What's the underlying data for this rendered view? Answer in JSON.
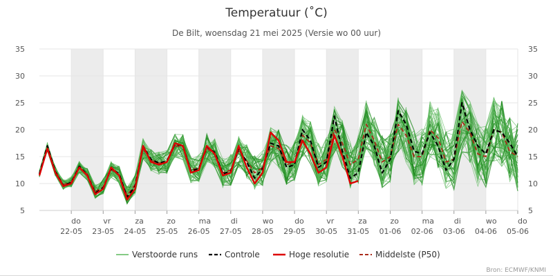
{
  "chart_data": {
    "type": "line",
    "title": "Temperatuur (˚C)",
    "subtitle": "De Bilt, woensdag 21 mei 2025 (Versie wo 00 uur)",
    "credits": "Bron: ECMWF/KNMI",
    "ylim": [
      5,
      35
    ],
    "yticks": [
      5,
      10,
      15,
      20,
      25,
      30,
      35
    ],
    "x_axis": {
      "start_day": 21,
      "end_day": 36,
      "tick_days": [
        22,
        23,
        24,
        25,
        26,
        27,
        28,
        29,
        30,
        31,
        32,
        33,
        34,
        35,
        36
      ],
      "tick_labels": [
        {
          "day": "do",
          "date": "22-05"
        },
        {
          "day": "vr",
          "date": "23-05"
        },
        {
          "day": "za",
          "date": "24-05"
        },
        {
          "day": "zo",
          "date": "25-05"
        },
        {
          "day": "ma",
          "date": "26-05"
        },
        {
          "day": "di",
          "date": "27-05"
        },
        {
          "day": "wo",
          "date": "28-05"
        },
        {
          "day": "do",
          "date": "29-05"
        },
        {
          "day": "vr",
          "date": "30-05"
        },
        {
          "day": "za",
          "date": "31-05"
        },
        {
          "day": "zo",
          "date": "01-06"
        },
        {
          "day": "ma",
          "date": "02-06"
        },
        {
          "day": "di",
          "date": "03-06"
        },
        {
          "day": "wo",
          "date": "04-06"
        },
        {
          "day": "do",
          "date": "05-06"
        }
      ],
      "shaded_days": [
        22,
        24,
        26,
        28,
        30,
        32,
        34,
        36
      ],
      "grid": true
    },
    "legend_position": "bottom-center",
    "colors": {
      "ensemble": "#5cb85c",
      "ensemble_dark": "#1e8a1e",
      "control": "#000000",
      "high_res": "#dd0000",
      "median": "#aa2a1a",
      "shade": "#ececec",
      "grid": "#e6e6e6"
    },
    "legend": [
      {
        "name": "Verstoorde runs",
        "style": "ensemble"
      },
      {
        "name": "Controle",
        "style": "control"
      },
      {
        "name": "Hoge resolutie",
        "style": "high_res"
      },
      {
        "name": "Middelste (P50)",
        "style": "median"
      }
    ],
    "series": [
      {
        "name": "Hoge resolutie",
        "x": [
          21.0,
          21.25,
          21.5,
          21.75,
          22.0,
          22.25,
          22.5,
          22.75,
          23.0,
          23.25,
          23.5,
          23.75,
          24.0,
          24.25,
          24.5,
          24.75,
          25.0,
          25.25,
          25.5,
          25.75,
          26.0,
          26.25,
          26.5,
          26.75,
          27.0,
          27.25,
          27.5,
          27.75,
          28.0,
          28.25,
          28.5,
          28.75,
          29.0,
          29.25,
          29.5,
          29.75,
          30.0,
          30.25,
          30.5,
          30.75,
          31.0
        ],
        "y": [
          11.5,
          16.5,
          12.0,
          9.5,
          10.0,
          13.0,
          11.5,
          8.0,
          9.0,
          13.0,
          11.5,
          7.0,
          9.0,
          17.0,
          14.0,
          13.5,
          14.0,
          17.5,
          17.0,
          12.0,
          12.5,
          17.0,
          15.5,
          11.5,
          12.0,
          17.0,
          13.0,
          10.0,
          12.0,
          19.5,
          18.0,
          14.0,
          14.0,
          18.0,
          15.5,
          12.0,
          13.0,
          19.0,
          15.0,
          10.0,
          10.5
        ]
      },
      {
        "name": "Controle",
        "x": [
          21.0,
          21.25,
          21.5,
          21.75,
          22.0,
          22.25,
          22.5,
          22.75,
          23.0,
          23.25,
          23.5,
          23.75,
          24.0,
          24.25,
          24.5,
          24.75,
          25.0,
          25.25,
          25.5,
          25.75,
          26.0,
          26.25,
          26.5,
          26.75,
          27.0,
          27.25,
          27.5,
          27.75,
          28.0,
          28.25,
          28.5,
          28.75,
          29.0,
          29.25,
          29.5,
          29.75,
          30.0,
          30.25,
          30.5,
          30.75,
          31.0,
          31.25,
          31.5,
          31.75,
          32.0,
          32.25,
          32.5,
          32.75,
          33.0,
          33.25,
          33.5,
          33.75,
          34.0,
          34.25,
          34.5,
          34.75,
          35.0,
          35.25,
          35.5,
          35.75,
          36.0
        ],
        "y": [
          11.8,
          17.0,
          12.2,
          9.6,
          10.2,
          13.2,
          11.6,
          8.2,
          9.2,
          12.8,
          11.8,
          7.5,
          9.5,
          17.0,
          14.5,
          13.8,
          14.2,
          17.3,
          17.0,
          12.3,
          12.8,
          16.8,
          15.8,
          11.8,
          12.3,
          16.5,
          14.0,
          11.0,
          12.8,
          17.5,
          17.0,
          13.0,
          13.5,
          20.0,
          18.0,
          13.0,
          14.0,
          22.5,
          16.0,
          11.0,
          12.0,
          19.5,
          17.0,
          12.0,
          14.5,
          23.5,
          21.0,
          16.0,
          15.5,
          19.5,
          17.0,
          12.5,
          14.5,
          25.0,
          20.0,
          17.0,
          15.5,
          20.0,
          19.5,
          17.5,
          15.0
        ]
      },
      {
        "name": "Middelste (P50)",
        "x": [
          21.0,
          21.25,
          21.5,
          21.75,
          22.0,
          22.25,
          22.5,
          22.75,
          23.0,
          23.25,
          23.5,
          23.75,
          24.0,
          24.25,
          24.5,
          24.75,
          25.0,
          25.25,
          25.5,
          25.75,
          26.0,
          26.25,
          26.5,
          26.75,
          27.0,
          27.25,
          27.5,
          27.75,
          28.0,
          28.25,
          28.5,
          28.75,
          29.0,
          29.25,
          29.5,
          29.75,
          30.0,
          30.25,
          30.5,
          30.75,
          31.0,
          31.25,
          31.5,
          31.75,
          32.0,
          32.25,
          32.5,
          32.75,
          33.0,
          33.25,
          33.5,
          33.75,
          34.0,
          34.25,
          34.5,
          34.75,
          35.0,
          35.25,
          35.5,
          35.75,
          36.0
        ],
        "y": [
          11.8,
          16.8,
          12.3,
          9.8,
          10.3,
          13.0,
          11.8,
          8.5,
          9.4,
          12.6,
          11.6,
          7.8,
          9.8,
          16.5,
          14.3,
          13.8,
          14.0,
          17.0,
          16.8,
          12.5,
          12.9,
          16.5,
          15.5,
          12.0,
          12.5,
          16.0,
          14.2,
          12.0,
          13.0,
          17.0,
          16.5,
          13.5,
          14.0,
          19.0,
          17.5,
          13.5,
          14.5,
          20.0,
          17.5,
          13.5,
          14.5,
          21.0,
          18.0,
          14.0,
          15.0,
          21.0,
          19.0,
          15.0,
          15.0,
          20.0,
          18.5,
          14.0,
          14.5,
          21.5,
          19.5,
          15.5,
          15.0,
          20.0,
          19.5,
          16.0,
          15.0
        ]
      }
    ]
  }
}
